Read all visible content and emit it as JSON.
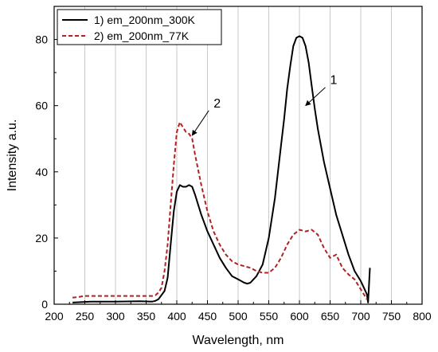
{
  "chart_data": {
    "type": "line",
    "title": "",
    "xlabel": "Wavelength, nm",
    "ylabel": "Intensity a.u.",
    "xlim": [
      200,
      800
    ],
    "ylim": [
      0,
      90
    ],
    "xticks": [
      200,
      250,
      300,
      350,
      400,
      450,
      500,
      550,
      600,
      650,
      700,
      750,
      800
    ],
    "yticks": [
      0,
      20,
      40,
      60,
      80
    ],
    "grid": "vertical",
    "legend_position": "top-left",
    "series": [
      {
        "name": "1) em_200nm_300K",
        "color": "#000000",
        "style": "solid",
        "x": [
          230,
          240,
          250,
          260,
          300,
          340,
          360,
          365,
          370,
          380,
          385,
          390,
          395,
          400,
          405,
          410,
          415,
          420,
          425,
          430,
          435,
          440,
          450,
          460,
          470,
          480,
          490,
          500,
          510,
          515,
          520,
          530,
          540,
          550,
          560,
          570,
          575,
          580,
          585,
          590,
          595,
          600,
          605,
          610,
          615,
          620,
          625,
          630,
          640,
          650,
          660,
          670,
          680,
          690,
          700,
          705,
          710,
          712,
          715
        ],
        "y": [
          0.5,
          0.6,
          0.7,
          0.8,
          0.8,
          0.9,
          0.8,
          1.0,
          1.5,
          4,
          8,
          18,
          28,
          34,
          36,
          35.5,
          35.5,
          36,
          35.5,
          33,
          30,
          27,
          22,
          18,
          14,
          11,
          8.5,
          7.5,
          6.5,
          6.2,
          6.5,
          8.5,
          12,
          20,
          32,
          48,
          56,
          65,
          72,
          78,
          80.5,
          81,
          80.5,
          78,
          73,
          66,
          59,
          53,
          43,
          35,
          27,
          21,
          15,
          10,
          7,
          5,
          3,
          0.5,
          11
        ]
      },
      {
        "name": "2) em_200nm_77K",
        "color": "#b22222",
        "style": "dashed",
        "x": [
          230,
          240,
          250,
          300,
          340,
          360,
          365,
          370,
          375,
          380,
          385,
          390,
          395,
          400,
          405,
          410,
          415,
          420,
          425,
          430,
          440,
          450,
          460,
          470,
          480,
          490,
          500,
          510,
          520,
          530,
          540,
          550,
          560,
          570,
          580,
          590,
          600,
          610,
          620,
          630,
          640,
          650,
          660,
          670,
          680,
          690,
          700,
          705,
          710
        ],
        "y": [
          2.0,
          2.2,
          2.5,
          2.5,
          2.5,
          2.5,
          2.7,
          3.5,
          5,
          10,
          18,
          30,
          42,
          52,
          55,
          53.5,
          52,
          51.5,
          50,
          45,
          36,
          28,
          22,
          18,
          15,
          13,
          12,
          11.5,
          11,
          10,
          9.5,
          9.5,
          11,
          14,
          18,
          21,
          22.5,
          22,
          22.5,
          21,
          17,
          14,
          15,
          11,
          9,
          7.5,
          4.5,
          3,
          1.5
        ]
      }
    ],
    "annotations": [
      {
        "text": "1",
        "target_x": 610,
        "target_y": 60,
        "label_x": 650,
        "label_y": 66
      },
      {
        "text": "2",
        "target_x": 425,
        "target_y": 51,
        "label_x": 460,
        "label_y": 59
      }
    ]
  }
}
